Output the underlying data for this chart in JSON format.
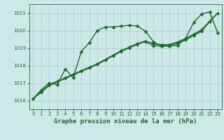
{
  "title": "Graphe pression niveau de la mer (hPa)",
  "bg_color": "#cce8e8",
  "grid_color": "#aacccc",
  "line_color": "#1a6b2a",
  "xlim": [
    -0.5,
    23.5
  ],
  "ylim": [
    1015.5,
    1021.5
  ],
  "yticks": [
    1016,
    1017,
    1018,
    1019,
    1020,
    1021
  ],
  "xticks": [
    0,
    1,
    2,
    3,
    4,
    5,
    6,
    7,
    8,
    9,
    10,
    11,
    12,
    13,
    14,
    15,
    16,
    17,
    18,
    19,
    20,
    21,
    22,
    23
  ],
  "series": [
    {
      "x": [
        0,
        1,
        2,
        3,
        4,
        5,
        6,
        7,
        8,
        9,
        10,
        11,
        12,
        13,
        14,
        15,
        16,
        17,
        18,
        19,
        20,
        21,
        22,
        23
      ],
      "y": [
        1016.1,
        1016.6,
        1017.0,
        1016.9,
        1017.8,
        1017.3,
        1018.8,
        1019.3,
        1020.0,
        1020.2,
        1020.2,
        1020.25,
        1020.3,
        1020.25,
        1019.95,
        1019.35,
        1019.1,
        1019.1,
        1019.15,
        1019.55,
        1020.45,
        1020.95,
        1021.05,
        1019.85
      ],
      "marker": "D",
      "markersize": 2.5,
      "linewidth": 1.0
    },
    {
      "x": [
        0,
        1,
        2,
        3,
        4,
        5,
        6,
        7,
        8,
        9,
        10,
        11,
        12,
        13,
        14,
        15,
        16,
        17,
        18,
        19,
        20,
        21,
        22,
        23
      ],
      "y": [
        1016.1,
        1016.45,
        1016.85,
        1017.05,
        1017.25,
        1017.45,
        1017.65,
        1017.85,
        1018.05,
        1018.3,
        1018.55,
        1018.8,
        1019.0,
        1019.2,
        1019.35,
        1019.1,
        1019.1,
        1019.15,
        1019.25,
        1019.45,
        1019.7,
        1019.95,
        1020.5,
        1021.0
      ],
      "marker": "D",
      "markersize": 2.0,
      "linewidth": 0.8
    },
    {
      "x": [
        0,
        1,
        2,
        3,
        4,
        5,
        6,
        7,
        8,
        9,
        10,
        11,
        12,
        13,
        14,
        15,
        16,
        17,
        18,
        19,
        20,
        21,
        22,
        23
      ],
      "y": [
        1016.1,
        1016.5,
        1016.9,
        1017.1,
        1017.3,
        1017.5,
        1017.7,
        1017.9,
        1018.1,
        1018.35,
        1018.6,
        1018.85,
        1019.05,
        1019.25,
        1019.4,
        1019.2,
        1019.15,
        1019.2,
        1019.3,
        1019.5,
        1019.75,
        1020.0,
        1020.5,
        1021.0
      ],
      "marker": "D",
      "markersize": 2.0,
      "linewidth": 0.8
    },
    {
      "x": [
        0,
        1,
        2,
        3,
        4,
        5,
        6,
        7,
        8,
        9,
        10,
        11,
        12,
        13,
        14,
        15,
        16,
        17,
        18,
        19,
        20,
        21,
        22,
        23
      ],
      "y": [
        1016.1,
        1016.5,
        1016.9,
        1017.1,
        1017.3,
        1017.5,
        1017.7,
        1017.9,
        1018.1,
        1018.35,
        1018.6,
        1018.85,
        1019.05,
        1019.25,
        1019.4,
        1019.25,
        1019.2,
        1019.2,
        1019.35,
        1019.55,
        1019.8,
        1020.05,
        1020.55,
        1021.0
      ],
      "marker": "D",
      "markersize": 2.0,
      "linewidth": 0.8
    }
  ]
}
